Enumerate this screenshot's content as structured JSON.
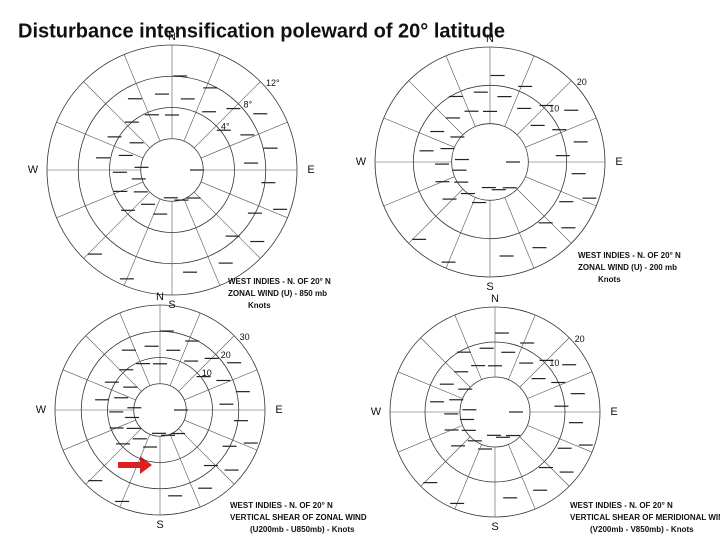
{
  "header": {
    "title": "Disturbance intensification poleward of 20° latitude"
  },
  "panels": [
    {
      "compass": {
        "n": "N",
        "e": "E",
        "s": "S",
        "w": "W"
      },
      "ring_labels": [
        "12°",
        "8°",
        "4°"
      ],
      "caption": [
        "WEST INDIES - N. OF 20° N",
        "ZONAL WIND (U) - 850 mb",
        "Knots"
      ]
    },
    {
      "compass": {
        "n": "N",
        "e": "E",
        "s": "S",
        "w": "W"
      },
      "ring_labels": [
        "20",
        "10"
      ],
      "caption": [
        "WEST INDIES - N. OF 20° N",
        "ZONAL WIND (U) - 200 mb",
        "Knots"
      ]
    },
    {
      "compass": {
        "n": "N",
        "e": "E",
        "s": "S",
        "w": "W"
      },
      "ring_labels": [
        "30",
        "20",
        "10"
      ],
      "caption": [
        "WEST INDIES - N. OF 20° N",
        "VERTICAL SHEAR OF ZONAL WIND",
        "(U200mb - U850mb) - Knots"
      ]
    },
    {
      "compass": {
        "n": "N",
        "e": "E",
        "s": "S",
        "w": "W"
      },
      "ring_labels": [
        "20",
        "10"
      ],
      "caption": [
        "WEST INDIES - N. OF 20° N",
        "VERTICAL SHEAR OF MERIDIONAL WIND",
        "(V200mb - V850mb) - Knots"
      ]
    }
  ]
}
